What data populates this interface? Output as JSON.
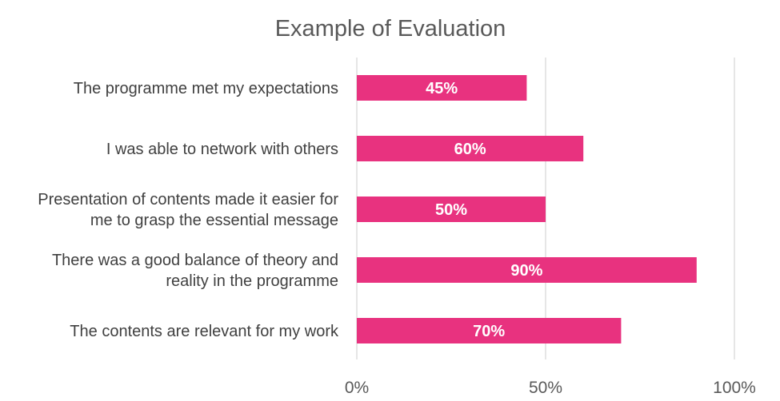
{
  "chart_data": {
    "type": "bar",
    "orientation": "horizontal",
    "title": "Example of Evaluation",
    "xlabel": "",
    "ylabel": "",
    "categories": [
      [
        "The programme met my expectations"
      ],
      [
        "I was able to network with others"
      ],
      [
        "Presentation of contents made it easier for",
        "me to grasp the essential message"
      ],
      [
        "There was a good balance of theory and",
        "reality in the programme"
      ],
      [
        "The contents are relevant for my work"
      ]
    ],
    "values": [
      45,
      60,
      50,
      90,
      70
    ],
    "value_labels": [
      "45%",
      "60%",
      "50%",
      "90%",
      "70%"
    ],
    "xlim": [
      0,
      100
    ],
    "xticks": [
      0,
      50,
      100
    ],
    "xtick_labels": [
      "0%",
      "50%",
      "100%"
    ],
    "grid": true,
    "legend": "none",
    "bar_color": "#e8327f"
  }
}
